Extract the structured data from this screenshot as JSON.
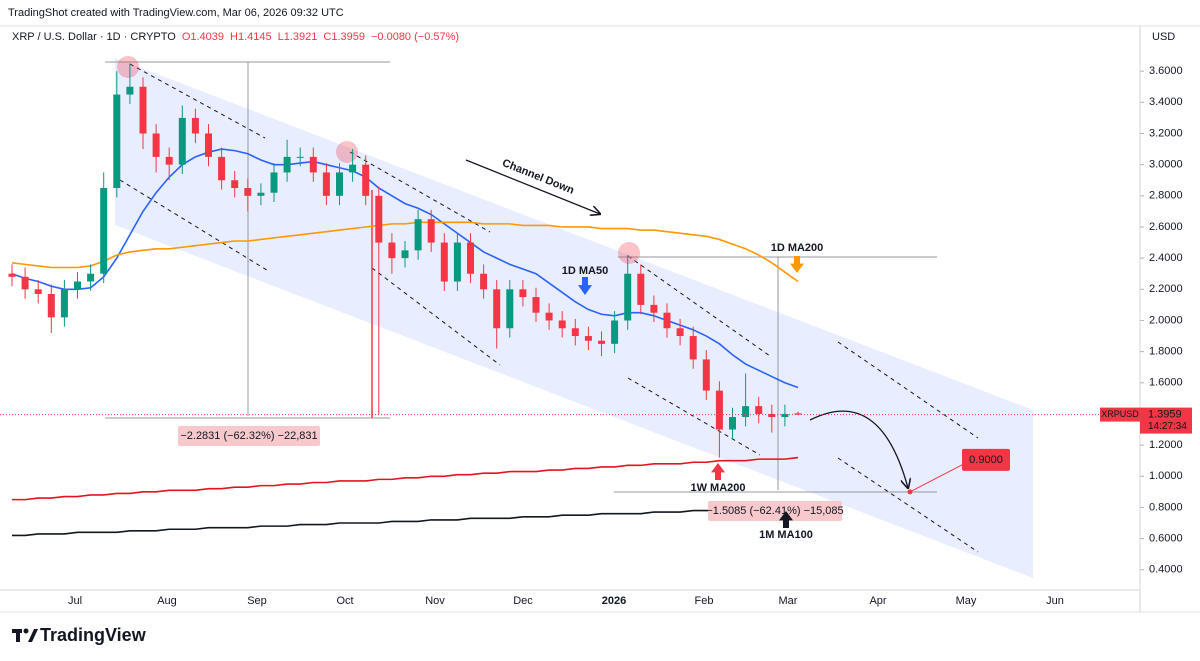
{
  "header": {
    "credit": "TradingShot created with TradingView.com, Mar 06, 2026 09:32 UTC"
  },
  "footer": {
    "logo": "TradingView"
  },
  "chart_data": {
    "type": "candlestick",
    "symbol": "XRP / U.S. Dollar · 1D · CRYPTO",
    "ohlc_legend": [
      "O1.4039",
      "H1.4145",
      "L1.3921",
      "C1.3959",
      "−0.0080 (−0.57%)"
    ],
    "currency": "USD",
    "x_labels": [
      "Jul",
      "Aug",
      "Sep",
      "Oct",
      "Nov",
      "Dec",
      "2026",
      "Feb",
      "Mar",
      "Apr",
      "May",
      "Jun"
    ],
    "up_color": "#089981",
    "down_color": "#f23645",
    "open": [
      2.3,
      2.28,
      2.2,
      2.17,
      2.02,
      2.2,
      2.25,
      2.3,
      2.85,
      3.45,
      3.5,
      3.2,
      3.05,
      3.0,
      3.3,
      3.2,
      3.05,
      2.9,
      2.85,
      2.8,
      2.82,
      2.95,
      3.05,
      3.05,
      2.95,
      2.8,
      2.95,
      3.0,
      2.8,
      2.5,
      2.4,
      2.45,
      2.65,
      2.5,
      2.25,
      2.5,
      2.3,
      2.2,
      1.95,
      2.2,
      2.15,
      2.05,
      2.0,
      1.95,
      1.9,
      1.87,
      1.85,
      2.0,
      2.3,
      2.1,
      2.05,
      1.95,
      1.9,
      1.75,
      1.55,
      1.3,
      1.38,
      1.45,
      1.4,
      1.38,
      1.4039
    ],
    "high": [
      2.36,
      2.34,
      2.26,
      2.23,
      2.26,
      2.31,
      2.36,
      2.95,
      3.6,
      3.65,
      3.56,
      3.26,
      3.11,
      3.38,
      3.36,
      3.26,
      3.11,
      2.96,
      2.91,
      2.88,
      3.01,
      3.16,
      3.11,
      3.11,
      3.01,
      3.01,
      3.1,
      3.06,
      2.86,
      2.56,
      2.51,
      2.71,
      2.71,
      2.56,
      2.56,
      2.56,
      2.36,
      2.26,
      2.26,
      2.26,
      2.21,
      2.11,
      2.06,
      2.01,
      1.96,
      1.93,
      2.06,
      2.42,
      2.36,
      2.16,
      2.11,
      2.01,
      1.96,
      1.81,
      1.61,
      1.44,
      1.66,
      1.51,
      1.46,
      1.46,
      1.4145
    ],
    "low": [
      2.22,
      2.14,
      2.11,
      1.92,
      1.96,
      2.14,
      2.19,
      2.24,
      2.79,
      3.39,
      3.1,
      2.95,
      2.9,
      2.94,
      3.14,
      2.99,
      2.84,
      2.79,
      2.7,
      2.74,
      2.76,
      2.89,
      2.99,
      2.89,
      2.74,
      2.74,
      2.89,
      2.74,
      1.4,
      2.3,
      2.34,
      2.39,
      2.44,
      2.19,
      2.19,
      2.24,
      2.14,
      1.82,
      1.89,
      2.09,
      1.99,
      1.94,
      1.89,
      1.84,
      1.81,
      1.77,
      1.79,
      1.94,
      2.04,
      1.99,
      1.89,
      1.84,
      1.69,
      1.49,
      1.12,
      1.24,
      1.32,
      1.34,
      1.28,
      1.32,
      1.3921
    ],
    "close": [
      2.28,
      2.2,
      2.17,
      2.02,
      2.2,
      2.25,
      2.3,
      2.85,
      3.45,
      3.5,
      3.2,
      3.05,
      3.0,
      3.3,
      3.2,
      3.05,
      2.9,
      2.85,
      2.8,
      2.82,
      2.95,
      3.05,
      3.05,
      2.95,
      2.8,
      2.95,
      3.0,
      2.8,
      2.5,
      2.4,
      2.45,
      2.65,
      2.5,
      2.25,
      2.5,
      2.3,
      2.2,
      1.95,
      2.2,
      2.15,
      2.05,
      2.0,
      1.95,
      1.9,
      1.87,
      1.85,
      2.0,
      2.3,
      2.1,
      2.05,
      1.95,
      1.9,
      1.75,
      1.55,
      1.3,
      1.38,
      1.45,
      1.4,
      1.38,
      1.4,
      1.3959
    ],
    "series": [
      {
        "name": "1D MA50",
        "color": "#2962ff",
        "values": [
          2.3,
          2.27,
          2.25,
          2.22,
          2.2,
          2.2,
          2.21,
          2.28,
          2.4,
          2.55,
          2.7,
          2.82,
          2.92,
          3.0,
          3.05,
          3.08,
          3.1,
          3.09,
          3.07,
          3.03,
          3.0,
          3.0,
          3.01,
          3.02,
          3.0,
          2.98,
          2.96,
          2.92,
          2.85,
          2.8,
          2.75,
          2.72,
          2.68,
          2.62,
          2.56,
          2.5,
          2.44,
          2.4,
          2.36,
          2.33,
          2.3,
          2.24,
          2.18,
          2.12,
          2.07,
          2.04,
          2.03,
          2.05,
          2.05,
          2.03,
          2.0,
          1.97,
          1.94,
          1.9,
          1.85,
          1.78,
          1.72,
          1.68,
          1.64,
          1.6,
          1.57
        ]
      },
      {
        "name": "1D MA200",
        "color": "#ff9800",
        "values": [
          2.37,
          2.36,
          2.35,
          2.34,
          2.34,
          2.34,
          2.35,
          2.38,
          2.42,
          2.44,
          2.45,
          2.46,
          2.46,
          2.47,
          2.48,
          2.49,
          2.5,
          2.51,
          2.51,
          2.52,
          2.53,
          2.54,
          2.55,
          2.56,
          2.57,
          2.58,
          2.59,
          2.6,
          2.61,
          2.62,
          2.62,
          2.63,
          2.63,
          2.63,
          2.63,
          2.63,
          2.62,
          2.62,
          2.62,
          2.61,
          2.61,
          2.61,
          2.6,
          2.6,
          2.6,
          2.59,
          2.59,
          2.59,
          2.58,
          2.58,
          2.57,
          2.56,
          2.55,
          2.54,
          2.52,
          2.49,
          2.46,
          2.42,
          2.37,
          2.31,
          2.25
        ]
      },
      {
        "name": "1W MA200",
        "color": "#e5121f",
        "values": [
          0.85,
          0.85,
          0.86,
          0.86,
          0.87,
          0.87,
          0.88,
          0.88,
          0.89,
          0.89,
          0.9,
          0.9,
          0.91,
          0.91,
          0.91,
          0.92,
          0.92,
          0.93,
          0.93,
          0.94,
          0.94,
          0.95,
          0.95,
          0.96,
          0.96,
          0.97,
          0.97,
          0.97,
          0.98,
          0.98,
          0.99,
          0.99,
          1.0,
          1.0,
          1.01,
          1.01,
          1.02,
          1.02,
          1.03,
          1.03,
          1.03,
          1.04,
          1.04,
          1.05,
          1.05,
          1.06,
          1.06,
          1.07,
          1.07,
          1.08,
          1.08,
          1.08,
          1.09,
          1.09,
          1.1,
          1.1,
          1.1,
          1.11,
          1.11,
          1.11,
          1.12
        ]
      },
      {
        "name": "1M MA100",
        "color": "#131722",
        "values": [
          0.62,
          0.62,
          0.63,
          0.63,
          0.63,
          0.64,
          0.64,
          0.64,
          0.64,
          0.65,
          0.65,
          0.65,
          0.66,
          0.66,
          0.66,
          0.67,
          0.67,
          0.67,
          0.67,
          0.68,
          0.68,
          0.68,
          0.69,
          0.69,
          0.69,
          0.7,
          0.7,
          0.7,
          0.7,
          0.71,
          0.71,
          0.71,
          0.72,
          0.72,
          0.72,
          0.73,
          0.73,
          0.73,
          0.73,
          0.74,
          0.74,
          0.74,
          0.75,
          0.75,
          0.75,
          0.76,
          0.76,
          0.76,
          0.76,
          0.77,
          0.77,
          0.77,
          0.78,
          0.78,
          0.78,
          0.79,
          0.79,
          0.79,
          0.79,
          0.8,
          0.8
        ]
      }
    ],
    "ylim": [
      0.27,
      3.89
    ],
    "yticks": [
      {
        "value": 0.4,
        "label": "0.4000"
      },
      {
        "value": 0.6,
        "label": "0.6000"
      },
      {
        "value": 0.8,
        "label": "0.8000"
      },
      {
        "value": 1.0,
        "label": "1.0000"
      },
      {
        "value": 1.2,
        "label": "1.2000"
      },
      {
        "value": 1.4,
        "label": "1.4000"
      },
      {
        "value": 1.6,
        "label": "1.6000"
      },
      {
        "value": 1.8,
        "label": "1.8000"
      },
      {
        "value": 2.0,
        "label": "2.0000"
      },
      {
        "value": 2.2,
        "label": "2.2000"
      },
      {
        "value": 2.4,
        "label": "2.4000"
      },
      {
        "value": 2.6,
        "label": "2.6000"
      },
      {
        "value": 2.8,
        "label": "2.8000"
      },
      {
        "value": 3.0,
        "label": "3.0000"
      },
      {
        "value": 3.2,
        "label": "3.2000"
      },
      {
        "value": 3.4,
        "label": "3.4000"
      },
      {
        "value": 3.6,
        "label": "3.6000"
      }
    ],
    "price_label": {
      "symbol": "XRPUSD",
      "countdown": "14:27:34"
    },
    "annotations": {
      "channel": "Channel Down",
      "measure_1": "−2.2831 (−62.32%) −22,831",
      "measure_2": "−1.5085 (−62.41%) −15,085",
      "target": {
        "value": 0.9,
        "label": "0.9000"
      }
    }
  }
}
